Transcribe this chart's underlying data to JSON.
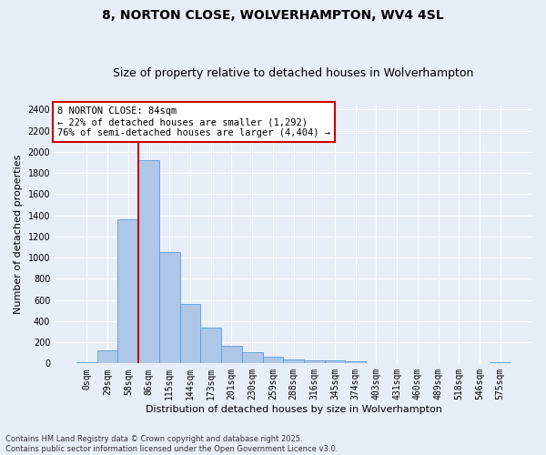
{
  "title": "8, NORTON CLOSE, WOLVERHAMPTON, WV4 4SL",
  "subtitle": "Size of property relative to detached houses in Wolverhampton",
  "xlabel": "Distribution of detached houses by size in Wolverhampton",
  "ylabel": "Number of detached properties",
  "categories": [
    "0sqm",
    "29sqm",
    "58sqm",
    "86sqm",
    "115sqm",
    "144sqm",
    "173sqm",
    "201sqm",
    "230sqm",
    "259sqm",
    "288sqm",
    "316sqm",
    "345sqm",
    "374sqm",
    "403sqm",
    "431sqm",
    "460sqm",
    "489sqm",
    "518sqm",
    "546sqm",
    "575sqm"
  ],
  "values": [
    10,
    125,
    1360,
    1920,
    1055,
    560,
    335,
    170,
    110,
    60,
    35,
    30,
    25,
    20,
    5,
    5,
    5,
    0,
    0,
    5,
    10
  ],
  "bar_color": "#aec6e8",
  "bar_edge_color": "#5b9bd5",
  "vline_index": 2.5,
  "annotation_line1": "8 NORTON CLOSE: 84sqm",
  "annotation_line2": "← 22% of detached houses are smaller (1,292)",
  "annotation_line3": "76% of semi-detached houses are larger (4,404) →",
  "annotation_box_facecolor": "#ffffff",
  "annotation_box_edgecolor": "#cc0000",
  "vline_color": "#cc0000",
  "ylim": [
    0,
    2450
  ],
  "yticks": [
    0,
    200,
    400,
    600,
    800,
    1000,
    1200,
    1400,
    1600,
    1800,
    2000,
    2200,
    2400
  ],
  "footer1": "Contains HM Land Registry data © Crown copyright and database right 2025.",
  "footer2": "Contains public sector information licensed under the Open Government Licence v3.0.",
  "background_color": "#e8eef8",
  "plot_background_color": "#e8eef8",
  "grid_color": "#ffffff",
  "title_fontsize": 10,
  "subtitle_fontsize": 9,
  "tick_fontsize": 7,
  "ylabel_fontsize": 8,
  "xlabel_fontsize": 8,
  "annotation_fontsize": 7.5,
  "footer_fontsize": 6
}
